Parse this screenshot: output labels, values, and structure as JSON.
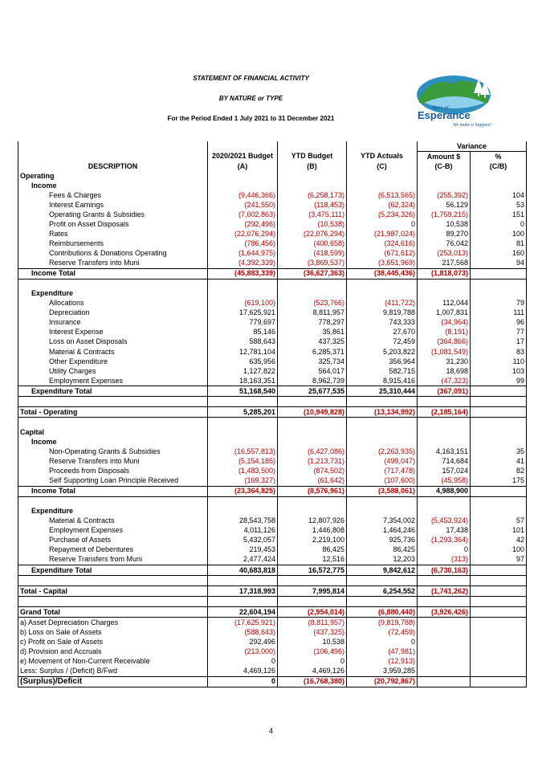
{
  "header": {
    "title": "STATEMENT OF FINANCIAL ACTIVITY",
    "subtitle": "BY NATURE or TYPE",
    "period": "For the Period Ended 1 July 2021 to 31 December 2021"
  },
  "logo": {
    "line1": "Shire of",
    "line2": "Esperance",
    "tagline": "We make it happen!"
  },
  "columns": {
    "variance": "Variance",
    "description": "DESCRIPTION",
    "budget": "2020/2021 Budget",
    "budget_sub": "(A)",
    "ytd_budget": "YTD Budget",
    "ytd_budget_sub": "(B)",
    "ytd_actuals": "YTD Actuals",
    "ytd_actuals_sub": "(C)",
    "amount": "Amount $",
    "amount_sub": "(C-B)",
    "pct": "%",
    "pct_sub": "(C/B)"
  },
  "rows": [
    {
      "label": "Operating",
      "type": "section"
    },
    {
      "label": "Income",
      "type": "sub"
    },
    {
      "label": "Fees & Charges",
      "type": "item",
      "a": "(9,446,366)",
      "b": "(6,258,173)",
      "c": "(6,513,565)",
      "d": "(255,392)",
      "e": "104"
    },
    {
      "label": "Interest Earnings",
      "type": "item",
      "a": "(241,550)",
      "b": "(118,453)",
      "c": "(62,324)",
      "d": "56,129",
      "e": "53"
    },
    {
      "label": "Operating Grants & Subsidies",
      "type": "item",
      "a": "(7,002,863)",
      "b": "(3,475,111)",
      "c": "(5,234,326)",
      "d": "(1,759,215)",
      "e": "151"
    },
    {
      "label": "Profit on Asset Disposals",
      "type": "item",
      "a": "(292,496)",
      "b": "(10,538)",
      "c": "0",
      "d": "10,538",
      "e": "0"
    },
    {
      "label": "Rates",
      "type": "item",
      "a": "(22,076,294)",
      "b": "(22,076,294)",
      "c": "(21,987,024)",
      "d": "89,270",
      "e": "100"
    },
    {
      "label": "Reimbursements",
      "type": "item",
      "a": "(786,456)",
      "b": "(400,658)",
      "c": "(324,616)",
      "d": "76,042",
      "e": "81"
    },
    {
      "label": "Contributions & Donations Operating",
      "type": "item",
      "a": "(1,644,975)",
      "b": "(418,599)",
      "c": "(671,612)",
      "d": "(253,013)",
      "e": "160"
    },
    {
      "label": "Reserve Transfers into Muni",
      "type": "item",
      "a": "(4,392,339)",
      "b": "(3,869,537)",
      "c": "(3,651,969)",
      "d": "217,568",
      "e": "94"
    },
    {
      "label": "Income Total",
      "type": "total",
      "a": "(45,883,339)",
      "b": "(36,627,363)",
      "c": "(38,445,436)",
      "d": "(1,818,073)",
      "e": ""
    },
    {
      "label": "",
      "type": "blank"
    },
    {
      "label": "Expenditure",
      "type": "sub"
    },
    {
      "label": "Allocations",
      "type": "item",
      "a": "(619,100)",
      "b": "(523,766)",
      "c": "(411,722)",
      "d": "112,044",
      "e": "79"
    },
    {
      "label": "Depreciation",
      "type": "item",
      "a": "17,625,921",
      "b": "8,811,957",
      "c": "9,819,788",
      "d": "1,007,831",
      "e": "111"
    },
    {
      "label": "Insurance",
      "type": "item",
      "a": "779,697",
      "b": "778,297",
      "c": "743,333",
      "d": "(34,964)",
      "e": "96"
    },
    {
      "label": "Interest Expense",
      "type": "item",
      "a": "85,146",
      "b": "35,861",
      "c": "27,670",
      "d": "(8,191)",
      "e": "77"
    },
    {
      "label": "Loss on Asset Disposals",
      "type": "item",
      "a": "588,643",
      "b": "437,325",
      "c": "72,459",
      "d": "(364,866)",
      "e": "17"
    },
    {
      "label": "Material & Contracts",
      "type": "item",
      "a": "12,781,104",
      "b": "6,285,371",
      "c": "5,203,822",
      "d": "(1,081,549)",
      "e": "83"
    },
    {
      "label": "Other Expenditure",
      "type": "item",
      "a": "635,956",
      "b": "325,734",
      "c": "356,964",
      "d": "31,230",
      "e": "110"
    },
    {
      "label": "Utility Charges",
      "type": "item",
      "a": "1,127,822",
      "b": "564,017",
      "c": "582,715",
      "d": "18,698",
      "e": "103"
    },
    {
      "label": "Employment Expenses",
      "type": "item",
      "a": "18,163,351",
      "b": "8,962,739",
      "c": "8,915,416",
      "d": "(47,323)",
      "e": "99"
    },
    {
      "label": "Expenditure Total",
      "type": "total",
      "a": "51,168,540",
      "b": "25,677,535",
      "c": "25,310,444",
      "d": "(367,091)",
      "e": ""
    },
    {
      "label": "",
      "type": "blank"
    },
    {
      "label": "Total - Operating",
      "type": "grand",
      "a": "5,285,201",
      "b": "(10,949,828)",
      "c": "(13,134,992)",
      "d": "(2,185,164)",
      "e": ""
    },
    {
      "label": "",
      "type": "blank"
    },
    {
      "label": "Capital",
      "type": "section"
    },
    {
      "label": "Income",
      "type": "sub"
    },
    {
      "label": "Non-Operating Grants & Subsidies",
      "type": "item",
      "a": "(16,557,813)",
      "b": "(6,427,086)",
      "c": "(2,263,935)",
      "d": "4,163,151",
      "e": "35"
    },
    {
      "label": "Reserve Transfers into Muni",
      "type": "item",
      "a": "(5,154,185)",
      "b": "(1,213,731)",
      "c": "(499,047)",
      "d": "714,684",
      "e": "41"
    },
    {
      "label": "Proceeds from Disposals",
      "type": "item",
      "a": "(1,483,500)",
      "b": "(874,502)",
      "c": "(717,478)",
      "d": "157,024",
      "e": "82"
    },
    {
      "label": "Self Supporting Loan Principle Received",
      "type": "item",
      "a": "(169,327)",
      "b": "(61,642)",
      "c": "(107,600)",
      "d": "(45,958)",
      "e": "175"
    },
    {
      "label": "Income Total",
      "type": "total",
      "a": "(23,364,825)",
      "b": "(8,576,961)",
      "c": "(3,588,061)",
      "d": "4,988,900",
      "e": ""
    },
    {
      "label": "",
      "type": "blank"
    },
    {
      "label": "Expenditure",
      "type": "sub"
    },
    {
      "label": "Material & Contracts",
      "type": "item",
      "a": "28,543,758",
      "b": "12,807,926",
      "c": "7,354,002",
      "d": "(5,453,924)",
      "e": "57"
    },
    {
      "label": "Employment Expenses",
      "type": "item",
      "a": "4,011,126",
      "b": "1,446,808",
      "c": "1,464,246",
      "d": "17,438",
      "e": "101"
    },
    {
      "label": "Purchase of Assets",
      "type": "item",
      "a": "5,432,057",
      "b": "2,219,100",
      "c": "925,736",
      "d": "(1,293,364)",
      "e": "42"
    },
    {
      "label": "Repayment of Debentures",
      "type": "item",
      "a": "219,453",
      "b": "86,425",
      "c": "86,425",
      "d": "0",
      "e": "100"
    },
    {
      "label": "Reserve Transfers from Muni",
      "type": "item",
      "a": "2,477,424",
      "b": "12,516",
      "c": "12,203",
      "d": "(313)",
      "e": "97"
    },
    {
      "label": "Expenditure Total",
      "type": "total",
      "a": "40,683,818",
      "b": "16,572,775",
      "c": "9,842,612",
      "d": "(6,730,163)",
      "e": ""
    },
    {
      "label": "",
      "type": "blank"
    },
    {
      "label": "Total - Capital",
      "type": "grand",
      "a": "17,318,993",
      "b": "7,995,814",
      "c": "6,254,552",
      "d": "(1,741,262)",
      "e": ""
    },
    {
      "label": "",
      "type": "blank"
    },
    {
      "label": "Grand Total",
      "type": "grandtotal",
      "a": "22,604,194",
      "b": "(2,954,014)",
      "c": "(6,880,440)",
      "d": "(3,926,426)",
      "e": ""
    },
    {
      "label": "a) Asset Depreciation Charges",
      "type": "adj",
      "a": "(17,625,921)",
      "b": "(8,811,957)",
      "c": "(9,819,788)",
      "d": "",
      "e": ""
    },
    {
      "label": "b) Loss on Sale of Assets",
      "type": "adj",
      "a": "(588,643)",
      "b": "(437,325)",
      "c": "(72,459)",
      "d": "",
      "e": ""
    },
    {
      "label": "c) Profit on Sale of Assets",
      "type": "adj",
      "a": "292,496",
      "b": "10,538",
      "c": "0",
      "d": "",
      "e": ""
    },
    {
      "label": "d) Provision and Accruals",
      "type": "adj",
      "a": "(213,000)",
      "b": "(106,496)",
      "c": "(47,981)",
      "d": "",
      "e": ""
    },
    {
      "label": "e) Movement of Non-Current Receivable",
      "type": "adj",
      "a": "0",
      "b": "0",
      "c": "(12,913)",
      "d": "",
      "e": ""
    },
    {
      "label": "Less: Surplus / (Deficit) B/Fwd",
      "type": "adj",
      "a": "4,469,126",
      "b": "4,469,126",
      "c": "3,959,285",
      "d": "",
      "e": ""
    },
    {
      "label": "(Surplus)/Deficit",
      "type": "final",
      "a": "0",
      "b": "(16,768,380)",
      "c": "(20,792,867)",
      "d": "",
      "e": ""
    }
  ],
  "page_number": "4"
}
